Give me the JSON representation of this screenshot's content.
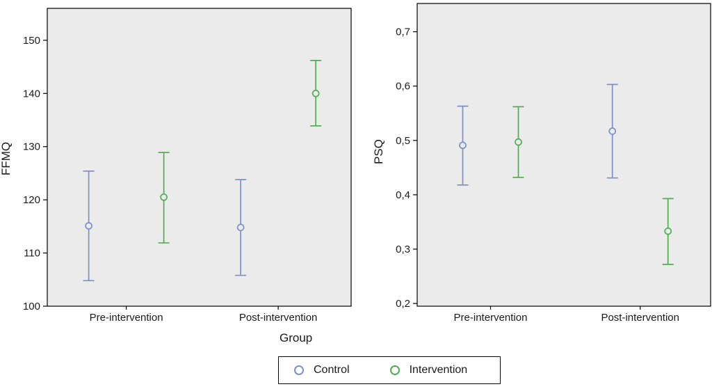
{
  "chart_data": [
    {
      "type": "errorbar",
      "id": "ffmq",
      "title": "",
      "ylabel": "FFMQ",
      "ylim": [
        100,
        156
      ],
      "yticks": [
        100,
        110,
        120,
        130,
        140,
        150
      ],
      "ytick_labels": [
        "100",
        "110",
        "120",
        "130",
        "140",
        "150"
      ],
      "categories": [
        "Pre-intervention",
        "Post-intervention"
      ],
      "series": [
        {
          "name": "Control",
          "color": "#7C8FC7",
          "points": [
            {
              "category": "Pre-intervention",
              "mean": 115.1,
              "ci_low": 104.8,
              "ci_high": 125.4
            },
            {
              "category": "Post-intervention",
              "mean": 114.8,
              "ci_low": 105.8,
              "ci_high": 123.8
            }
          ]
        },
        {
          "name": "Intervention",
          "color": "#4FAE4F",
          "points": [
            {
              "category": "Pre-intervention",
              "mean": 120.5,
              "ci_low": 111.9,
              "ci_high": 128.9
            },
            {
              "category": "Post-intervention",
              "mean": 140.0,
              "ci_low": 133.9,
              "ci_high": 146.2
            }
          ]
        }
      ]
    },
    {
      "type": "errorbar",
      "id": "psq",
      "title": "",
      "ylabel": "PSQ",
      "ylim": [
        0.195,
        0.752
      ],
      "yticks": [
        0.2,
        0.3,
        0.4,
        0.5,
        0.6,
        0.7
      ],
      "ytick_labels": [
        "0,2",
        "0,3",
        "0,4",
        "0,5",
        "0,6",
        "0,7"
      ],
      "categories": [
        "Pre-intervention",
        "Post-intervention"
      ],
      "series": [
        {
          "name": "Control",
          "color": "#7C8FC7",
          "points": [
            {
              "category": "Pre-intervention",
              "mean": 0.491,
              "ci_low": 0.418,
              "ci_high": 0.563
            },
            {
              "category": "Post-intervention",
              "mean": 0.517,
              "ci_low": 0.431,
              "ci_high": 0.603
            }
          ]
        },
        {
          "name": "Intervention",
          "color": "#4FAE4F",
          "points": [
            {
              "category": "Pre-intervention",
              "mean": 0.497,
              "ci_low": 0.432,
              "ci_high": 0.562
            },
            {
              "category": "Post-intervention",
              "mean": 0.333,
              "ci_low": 0.272,
              "ci_high": 0.393
            }
          ]
        }
      ]
    }
  ],
  "legend": {
    "title": "Group",
    "entries": [
      {
        "label": "Control",
        "color": "#7C8FC7"
      },
      {
        "label": "Intervention",
        "color": "#4FAE4F"
      }
    ]
  },
  "colors": {
    "plot_bg": "#EBEBEB",
    "axis": "#000000",
    "control": "#7C8FC7",
    "intervention": "#4FAE4F"
  }
}
